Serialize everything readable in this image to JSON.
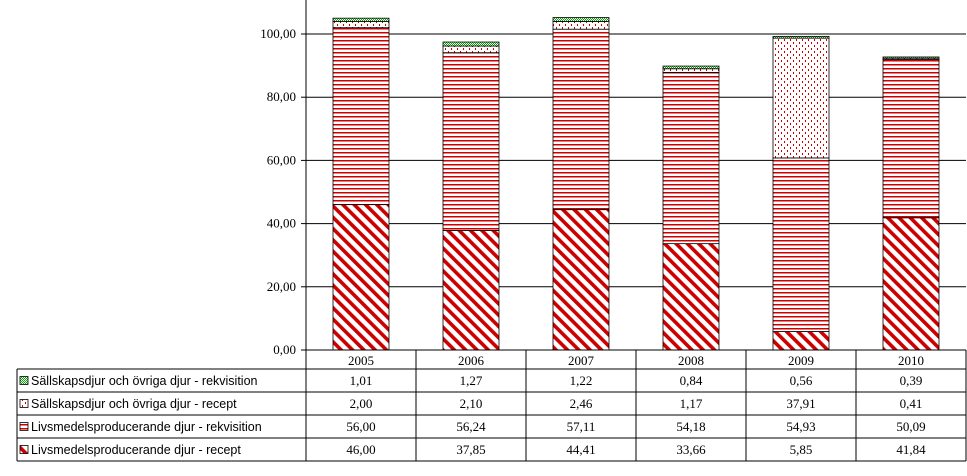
{
  "chart_data": {
    "type": "bar",
    "stacked": true,
    "categories": [
      "2005",
      "2006",
      "2007",
      "2008",
      "2009",
      "2010"
    ],
    "ylim": [
      0,
      100
    ],
    "yticks": [
      "0,00",
      "20,00",
      "40,00",
      "60,00",
      "80,00",
      "100,00"
    ],
    "grid": true,
    "legend_placement": "bottom-left data table",
    "series": [
      {
        "name": "Livsmedelsproducerande djur - recept",
        "values": [
          46.0,
          37.85,
          44.41,
          33.66,
          5.85,
          41.84
        ],
        "labels": [
          "46,00",
          "37,85",
          "44,41",
          "33,66",
          "5,85",
          "41,84"
        ],
        "color": "#cc0000",
        "pattern": "diagonal"
      },
      {
        "name": "Livsmedelsproducerande djur - rekvisition",
        "values": [
          56.0,
          56.24,
          57.11,
          54.18,
          54.93,
          50.09
        ],
        "labels": [
          "56,00",
          "56,24",
          "57,11",
          "54,18",
          "54,93",
          "50,09"
        ],
        "color": "#cc0000",
        "pattern": "horizontal"
      },
      {
        "name": "Sällskapsdjur och övriga djur - recept",
        "values": [
          2.0,
          2.1,
          2.46,
          1.17,
          37.91,
          0.41
        ],
        "labels": [
          "2,00",
          "2,10",
          "2,46",
          "1,17",
          "37,91",
          "0,41"
        ],
        "color": "#cc0000",
        "pattern": "dots"
      },
      {
        "name": "Sällskapsdjur och övriga djur - rekvisition",
        "values": [
          1.01,
          1.27,
          1.22,
          0.84,
          0.56,
          0.39
        ],
        "labels": [
          "1,01",
          "1,27",
          "1,22",
          "0,84",
          "0,56",
          "0,39"
        ],
        "color": "#00aa00",
        "pattern": "checker"
      }
    ],
    "table_row_order": [
      3,
      2,
      1,
      0
    ]
  }
}
